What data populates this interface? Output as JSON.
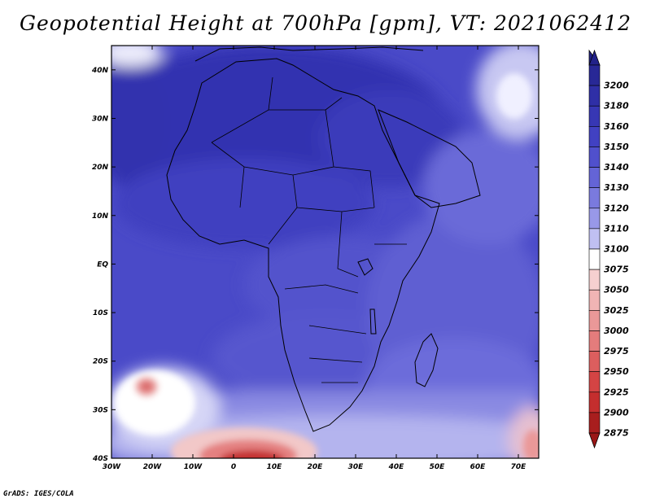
{
  "title": "Geopotential Height at 700hPa [gpm], VT: 2021062412",
  "credit": "GrADS: IGES/COLA",
  "map": {
    "lon_range": [
      -30,
      75
    ],
    "lat_range": [
      -40,
      45
    ],
    "lon_ticks": [
      {
        "value": -30,
        "label": "30W"
      },
      {
        "value": -20,
        "label": "20W"
      },
      {
        "value": -10,
        "label": "10W"
      },
      {
        "value": 0,
        "label": "0"
      },
      {
        "value": 10,
        "label": "10E"
      },
      {
        "value": 20,
        "label": "20E"
      },
      {
        "value": 30,
        "label": "30E"
      },
      {
        "value": 40,
        "label": "40E"
      },
      {
        "value": 50,
        "label": "50E"
      },
      {
        "value": 60,
        "label": "60E"
      },
      {
        "value": 70,
        "label": "70E"
      }
    ],
    "lat_ticks": [
      {
        "value": 40,
        "label": "40N"
      },
      {
        "value": 30,
        "label": "30N"
      },
      {
        "value": 20,
        "label": "20N"
      },
      {
        "value": 10,
        "label": "10N"
      },
      {
        "value": 0,
        "label": "EQ"
      },
      {
        "value": -10,
        "label": "10S"
      },
      {
        "value": -20,
        "label": "20S"
      },
      {
        "value": -30,
        "label": "30S"
      },
      {
        "value": -40,
        "label": "40S"
      }
    ]
  },
  "colorbar": {
    "levels": [
      {
        "label": "3200",
        "color": "#282896"
      },
      {
        "label": "3180",
        "color": "#2f2fa6"
      },
      {
        "label": "3160",
        "color": "#3737b4"
      },
      {
        "label": "3150",
        "color": "#4141c2"
      },
      {
        "label": "3140",
        "color": "#5050cc"
      },
      {
        "label": "3130",
        "color": "#6464d6"
      },
      {
        "label": "3120",
        "color": "#7a7ade"
      },
      {
        "label": "3110",
        "color": "#9898e8"
      },
      {
        "label": "3100",
        "color": "#c0c0f2"
      },
      {
        "label": "3075",
        "color": "#ffffff"
      },
      {
        "label": "3050",
        "color": "#f6d0d0"
      },
      {
        "label": "3025",
        "color": "#f0b4b4"
      },
      {
        "label": "3000",
        "color": "#ea9898"
      },
      {
        "label": "2975",
        "color": "#e47c7c"
      },
      {
        "label": "2950",
        "color": "#dc5e5e"
      },
      {
        "label": "2925",
        "color": "#d44444"
      },
      {
        "label": "2900",
        "color": "#c42e2e"
      },
      {
        "label": "2875",
        "color": "#a81e1e"
      }
    ],
    "top_arrow_color": "#22228a",
    "bottom_arrow_color": "#9a1616"
  }
}
